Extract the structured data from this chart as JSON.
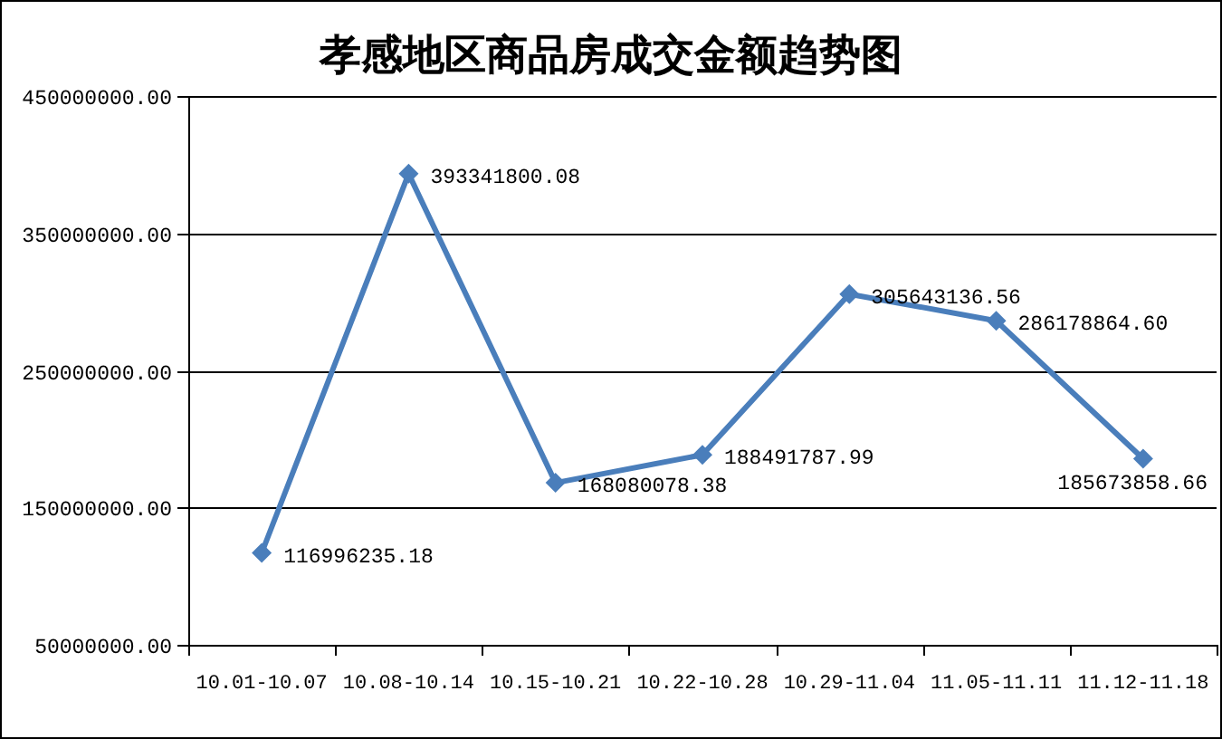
{
  "chart_data": {
    "type": "line",
    "title": "孝感地区商品房成交金额趋势图",
    "categories": [
      "10.01-10.07",
      "10.08-10.14",
      "10.15-10.21",
      "10.22-10.28",
      "10.29-11.04",
      "11.05-11.11",
      "11.12-11.18"
    ],
    "series": [
      {
        "color": "#4a7ebb",
        "values": [
          116996235.18,
          393341800.08,
          168080078.38,
          188491787.99,
          305643136.56,
          286178864.6,
          185673858.66
        ],
        "value_labels": [
          "116996235.18",
          "393341800.08",
          "168080078.38",
          "188491787.99",
          "305643136.56",
          "286178864.60",
          "185673858.66"
        ]
      }
    ],
    "ylim": [
      50000000,
      450000000
    ],
    "yticks": [
      {
        "value": 50000000,
        "label": "50000000.00"
      },
      {
        "value": 150000000,
        "label": "150000000.00"
      },
      {
        "value": 250000000,
        "label": "250000000.00"
      },
      {
        "value": 350000000,
        "label": "350000000.00"
      },
      {
        "value": 450000000,
        "label": "450000000.00"
      }
    ],
    "grid": "y",
    "marker": "diamond",
    "line_style": "solid"
  }
}
